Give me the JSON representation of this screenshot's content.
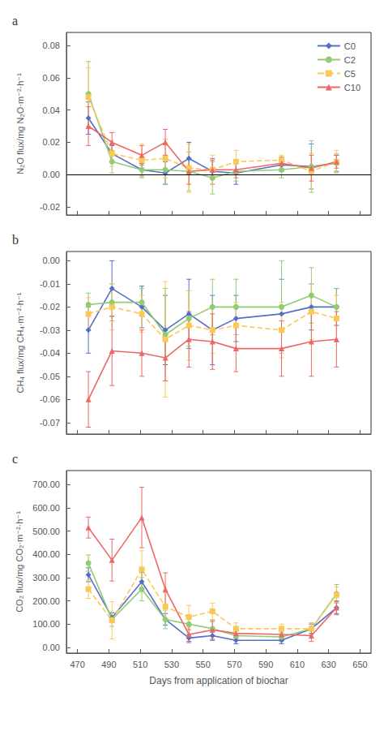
{
  "chart_data": [
    {
      "type": "line",
      "title": "a",
      "ylabel": "N₂O flux/mg N₂O·m⁻²·h⁻¹",
      "x": [
        477,
        492,
        511,
        526,
        541,
        556,
        571,
        600,
        619,
        635
      ],
      "xlim": [
        463,
        657
      ],
      "xticks": [
        470,
        490,
        510,
        530,
        550,
        570,
        590,
        610,
        630,
        650
      ],
      "ylim": [
        -0.025,
        0.088
      ],
      "yticks": [
        -0.02,
        {
          "value": 0,
          "label": "0.00"
        },
        0.02,
        0.04,
        0.06,
        0.08
      ],
      "hline": 0,
      "legend": "upper right",
      "grid": false,
      "tick_labels": "y",
      "series": [
        {
          "name": "C0",
          "marker": "diamond",
          "line_style": "solid",
          "values": [
            0.035,
            0.013,
            0.003,
            0.001,
            0.01,
            0.002,
            0.001,
            0.006,
            0.005,
            0.007
          ],
          "errors": [
            0.01,
            0.005,
            0.004,
            0.007,
            0.01,
            0.008,
            0.007,
            0.004,
            0.014,
            0.005
          ]
        },
        {
          "name": "C2",
          "marker": "circle",
          "line_style": "solid",
          "values": [
            0.05,
            0.008,
            0.003,
            0.003,
            0.002,
            -0.002,
            0.002,
            0.003,
            0.005,
            0.007
          ],
          "errors": [
            0.02,
            0.007,
            0.005,
            0.009,
            0.012,
            0.01,
            0.006,
            0.005,
            0.016,
            0.006
          ]
        },
        {
          "name": "C5",
          "marker": "square",
          "line_style": "dashed",
          "values": [
            0.048,
            0.013,
            0.009,
            0.01,
            0.004,
            0.003,
            0.008,
            0.009,
            0.002,
            0.008
          ],
          "errors": [
            0.018,
            0.008,
            0.01,
            0.012,
            0.015,
            0.009,
            0.007,
            0.003,
            0.011,
            0.007
          ]
        },
        {
          "name": "C10",
          "marker": "triangle",
          "line_style": "solid",
          "values": [
            0.03,
            0.02,
            0.012,
            0.02,
            0.002,
            0.003,
            0.003,
            0.007,
            0.004,
            0.008
          ],
          "errors": [
            0.012,
            0.006,
            0.006,
            0.008,
            0.008,
            0.006,
            0.005,
            0.004,
            0.008,
            0.004
          ]
        }
      ]
    },
    {
      "type": "line",
      "title": "b",
      "ylabel": "CH₄ flux/mg CH₄·m⁻²·h⁻¹",
      "x": [
        477,
        492,
        511,
        526,
        541,
        556,
        571,
        600,
        619,
        635
      ],
      "xlim": [
        463,
        657
      ],
      "xticks": [
        470,
        490,
        510,
        530,
        550,
        570,
        590,
        610,
        630,
        650
      ],
      "ylim": [
        -0.075,
        0.004
      ],
      "yticks": [
        -0.07,
        -0.06,
        -0.05,
        -0.04,
        -0.03,
        -0.02,
        -0.01,
        {
          "value": 0,
          "label": "0.00"
        }
      ],
      "grid": false,
      "tick_labels": "y",
      "series": [
        {
          "name": "C0",
          "marker": "diamond",
          "line_style": "solid",
          "values": [
            -0.03,
            -0.012,
            -0.02,
            -0.03,
            -0.023,
            -0.03,
            -0.025,
            -0.023,
            -0.02,
            -0.02
          ],
          "errors": [
            0.01,
            0.012,
            0.009,
            0.015,
            0.015,
            0.015,
            0.01,
            0.015,
            0.01,
            0.008
          ]
        },
        {
          "name": "C2",
          "marker": "circle",
          "line_style": "solid",
          "values": [
            -0.019,
            -0.018,
            -0.018,
            -0.032,
            -0.025,
            -0.02,
            -0.02,
            -0.02,
            -0.015,
            -0.02
          ],
          "errors": [
            0.005,
            0.008,
            0.006,
            0.02,
            0.012,
            0.012,
            0.012,
            0.02,
            0.012,
            0.008
          ]
        },
        {
          "name": "C5",
          "marker": "square",
          "line_style": "dashed",
          "values": [
            -0.023,
            -0.02,
            -0.023,
            -0.034,
            -0.028,
            -0.03,
            -0.028,
            -0.03,
            -0.022,
            -0.025
          ],
          "errors": [
            0.007,
            0.01,
            0.008,
            0.025,
            0.015,
            0.01,
            0.01,
            0.012,
            0.012,
            0.01
          ]
        },
        {
          "name": "C10",
          "marker": "triangle",
          "line_style": "solid",
          "values": [
            -0.06,
            -0.039,
            -0.04,
            -0.042,
            -0.034,
            -0.035,
            -0.038,
            -0.038,
            -0.035,
            -0.034
          ],
          "errors": [
            0.012,
            0.015,
            0.01,
            0.01,
            0.012,
            0.012,
            0.01,
            0.012,
            0.015,
            0.012
          ]
        }
      ]
    },
    {
      "type": "line",
      "title": "c",
      "ylabel": "CO₂ flux/mg CO₂·m⁻²·h⁻¹",
      "xlabel": "Days from application of biochar",
      "x": [
        477,
        492,
        511,
        526,
        541,
        556,
        571,
        600,
        619,
        635
      ],
      "xlim": [
        463,
        657
      ],
      "xticks": [
        470,
        490,
        510,
        530,
        550,
        570,
        590,
        610,
        630,
        650
      ],
      "ylim": [
        -25,
        760
      ],
      "yticks": [
        {
          "value": 0,
          "label": "0.00"
        },
        {
          "value": 100,
          "label": "100.00"
        },
        {
          "value": 200,
          "label": "200.00"
        },
        {
          "value": 300,
          "label": "300.00"
        },
        {
          "value": 400,
          "label": "400.00"
        },
        {
          "value": 500,
          "label": "500.00"
        },
        {
          "value": 600,
          "label": "600.00"
        },
        {
          "value": 700,
          "label": "700.00"
        }
      ],
      "grid": false,
      "tick_labels": true,
      "series": [
        {
          "name": "C0",
          "marker": "diamond",
          "line_style": "solid",
          "values": [
            312,
            128,
            282,
            120,
            40,
            50,
            30,
            30,
            80,
            170
          ],
          "errors": [
            30,
            20,
            40,
            25,
            15,
            20,
            15,
            15,
            20,
            25
          ]
        },
        {
          "name": "C2",
          "marker": "circle",
          "line_style": "solid",
          "values": [
            362,
            120,
            250,
            120,
            100,
            80,
            50,
            45,
            80,
            230
          ],
          "errors": [
            35,
            30,
            50,
            40,
            25,
            30,
            20,
            20,
            25,
            40
          ]
        },
        {
          "name": "C5",
          "marker": "square",
          "line_style": "dashed",
          "values": [
            250,
            116,
            335,
            175,
            130,
            155,
            80,
            80,
            80,
            225
          ],
          "errors": [
            40,
            80,
            80,
            60,
            50,
            35,
            25,
            20,
            25,
            35
          ]
        },
        {
          "name": "C10",
          "marker": "triangle",
          "line_style": "solid",
          "values": [
            515,
            375,
            558,
            250,
            55,
            75,
            60,
            55,
            50,
            170
          ],
          "errors": [
            45,
            90,
            130,
            70,
            35,
            40,
            20,
            20,
            25,
            30
          ]
        }
      ]
    }
  ]
}
